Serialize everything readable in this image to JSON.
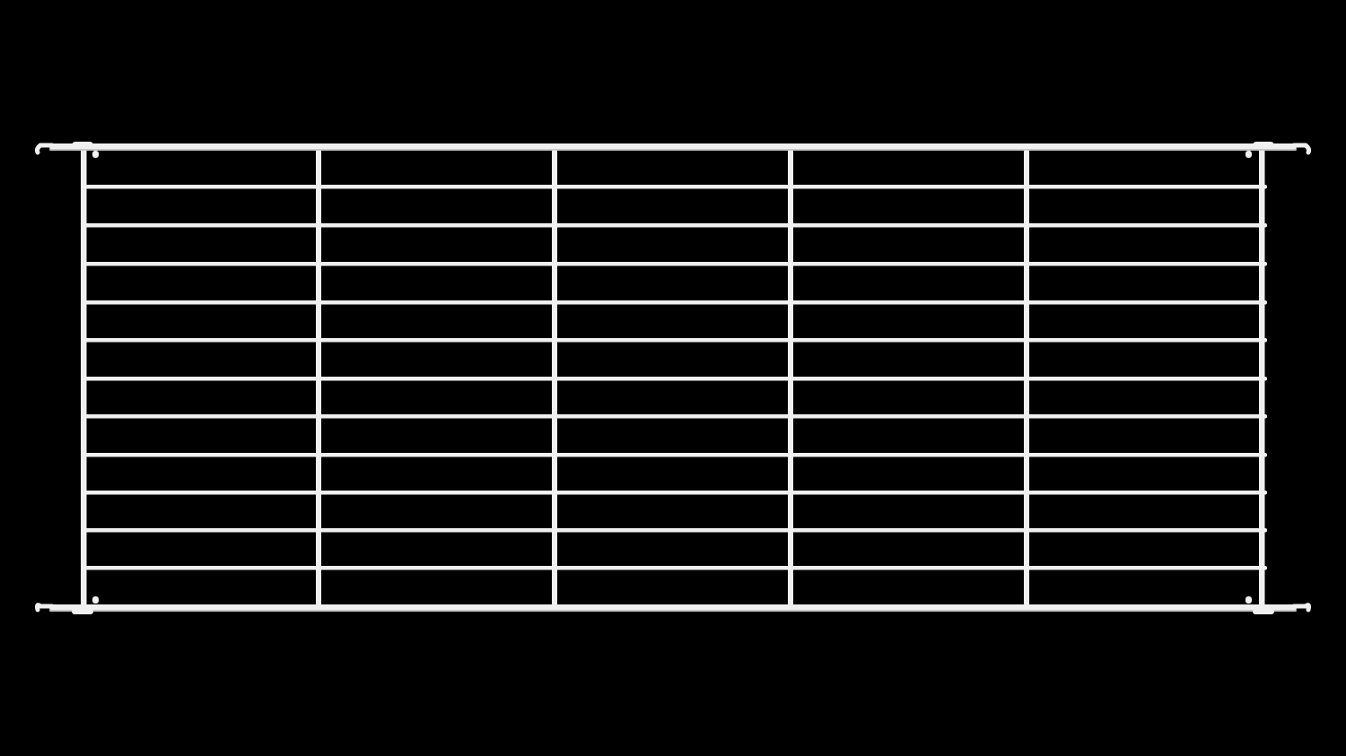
{
  "scene": {
    "subject": "wire-shelf",
    "background_color": "#000000",
    "wire_color": "#f0f0f0",
    "wire_shade_color": "#c8c8c8"
  }
}
